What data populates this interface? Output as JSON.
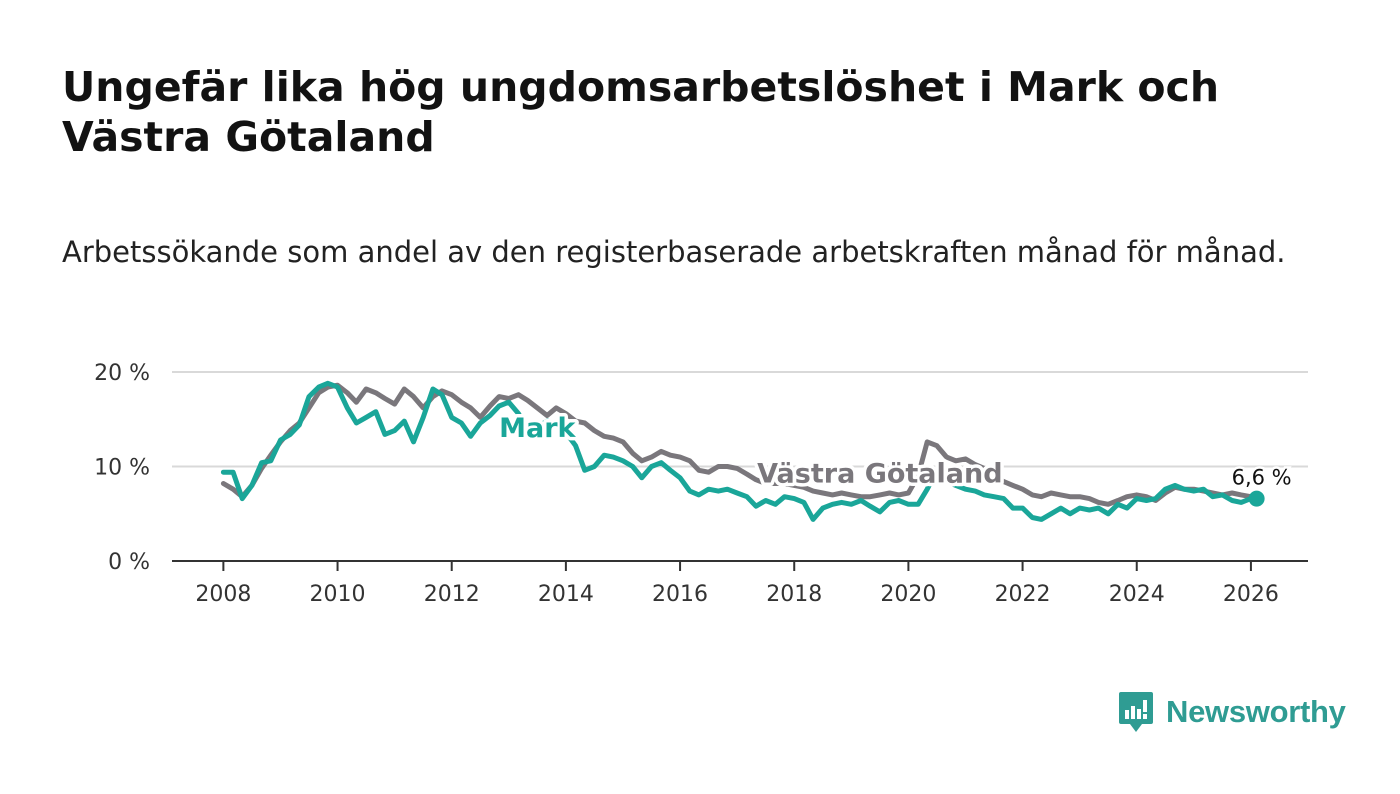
{
  "title": "Ungefär lika hög ungdomsarbetslöshet i Mark och Västra Götaland",
  "subtitle": "Arbetssökande som andel av den registerbaserade arbetskraften månad för månad.",
  "brand": {
    "name": "Newsworthy",
    "color": "#2f9c93"
  },
  "chart_data": {
    "type": "line",
    "title": "Ungefär lika hög ungdomsarbetslöshet i Mark och Västra Götaland",
    "xlabel": "",
    "ylabel": "",
    "xlim": [
      2007.1,
      2027.0
    ],
    "ylim": [
      0,
      20
    ],
    "yticks": [
      0,
      10,
      20
    ],
    "ytick_labels": [
      "0 %",
      "10 %",
      "20 %"
    ],
    "xticks": [
      2008,
      2010,
      2012,
      2014,
      2016,
      2018,
      2020,
      2022,
      2024,
      2026
    ],
    "xtick_labels": [
      "2008",
      "2010",
      "2012",
      "2014",
      "2016",
      "2018",
      "2020",
      "2022",
      "2024",
      "2026"
    ],
    "grid": true,
    "end_label": "6,6 %",
    "series": [
      {
        "name": "Västra Götaland",
        "color": "#7a777c",
        "x": [
          2008.0,
          2008.17,
          2008.33,
          2008.5,
          2008.67,
          2008.83,
          2009.0,
          2009.17,
          2009.33,
          2009.5,
          2009.67,
          2009.83,
          2010.0,
          2010.17,
          2010.33,
          2010.5,
          2010.67,
          2010.83,
          2011.0,
          2011.17,
          2011.33,
          2011.5,
          2011.67,
          2011.83,
          2012.0,
          2012.17,
          2012.33,
          2012.5,
          2012.67,
          2012.83,
          2013.0,
          2013.17,
          2013.33,
          2013.5,
          2013.67,
          2013.83,
          2014.0,
          2014.17,
          2014.33,
          2014.5,
          2014.67,
          2014.83,
          2015.0,
          2015.17,
          2015.33,
          2015.5,
          2015.67,
          2015.83,
          2016.0,
          2016.17,
          2016.33,
          2016.5,
          2016.67,
          2016.83,
          2017.0,
          2017.17,
          2017.33,
          2017.5,
          2017.67,
          2017.83,
          2018.0,
          2018.17,
          2018.33,
          2018.5,
          2018.67,
          2018.83,
          2019.0,
          2019.17,
          2019.33,
          2019.5,
          2019.67,
          2019.83,
          2020.0,
          2020.17,
          2020.33,
          2020.5,
          2020.67,
          2020.83,
          2021.0,
          2021.17,
          2021.33,
          2021.5,
          2021.67,
          2021.83,
          2022.0,
          2022.17,
          2022.33,
          2022.5,
          2022.67,
          2022.83,
          2023.0,
          2023.17,
          2023.33,
          2023.5,
          2023.67,
          2023.83,
          2024.0,
          2024.17,
          2024.33,
          2024.5,
          2024.67,
          2024.83,
          2025.0,
          2025.17,
          2025.33,
          2025.5,
          2025.67,
          2025.83,
          2026.0,
          2026.1
        ],
        "values": [
          8.2,
          7.6,
          6.8,
          8.0,
          9.8,
          11.2,
          12.6,
          13.8,
          14.6,
          16.2,
          17.8,
          18.4,
          18.6,
          17.8,
          16.8,
          18.2,
          17.8,
          17.2,
          16.6,
          18.2,
          17.4,
          16.2,
          17.4,
          18.0,
          17.6,
          16.8,
          16.2,
          15.2,
          16.4,
          17.4,
          17.2,
          17.6,
          17.0,
          16.2,
          15.4,
          16.2,
          15.6,
          14.8,
          14.6,
          13.8,
          13.2,
          13.0,
          12.6,
          11.4,
          10.6,
          11.0,
          11.6,
          11.2,
          11.0,
          10.6,
          9.6,
          9.4,
          10.0,
          10.0,
          9.8,
          9.2,
          8.6,
          8.2,
          8.2,
          8.2,
          8.0,
          7.8,
          7.4,
          7.2,
          7.0,
          7.2,
          7.0,
          6.8,
          6.8,
          7.0,
          7.2,
          7.0,
          7.2,
          9.0,
          12.6,
          12.2,
          11.0,
          10.6,
          10.8,
          10.2,
          9.8,
          9.0,
          8.4,
          8.0,
          7.6,
          7.0,
          6.8,
          7.2,
          7.0,
          6.8,
          6.8,
          6.6,
          6.2,
          6.0,
          6.4,
          6.8,
          7.0,
          6.8,
          6.4,
          7.2,
          7.8,
          7.6,
          7.6,
          7.4,
          7.2,
          7.0,
          7.2,
          7.0,
          6.8,
          6.6
        ]
      },
      {
        "name": "Mark",
        "color": "#1aa699",
        "x": [
          2008.0,
          2008.17,
          2008.33,
          2008.5,
          2008.67,
          2008.83,
          2009.0,
          2009.17,
          2009.33,
          2009.5,
          2009.67,
          2009.83,
          2010.0,
          2010.17,
          2010.33,
          2010.5,
          2010.67,
          2010.83,
          2011.0,
          2011.17,
          2011.33,
          2011.5,
          2011.67,
          2011.83,
          2012.0,
          2012.17,
          2012.33,
          2012.5,
          2012.67,
          2012.83,
          2013.0,
          2013.17,
          2013.33,
          2013.5,
          2013.67,
          2013.83,
          2014.0,
          2014.17,
          2014.33,
          2014.5,
          2014.67,
          2014.83,
          2015.0,
          2015.17,
          2015.33,
          2015.5,
          2015.67,
          2015.83,
          2016.0,
          2016.17,
          2016.33,
          2016.5,
          2016.67,
          2016.83,
          2017.0,
          2017.17,
          2017.33,
          2017.5,
          2017.67,
          2017.83,
          2018.0,
          2018.17,
          2018.33,
          2018.5,
          2018.67,
          2018.83,
          2019.0,
          2019.17,
          2019.33,
          2019.5,
          2019.67,
          2019.83,
          2020.0,
          2020.17,
          2020.33,
          2020.5,
          2020.67,
          2020.83,
          2021.0,
          2021.17,
          2021.33,
          2021.5,
          2021.67,
          2021.83,
          2022.0,
          2022.17,
          2022.33,
          2022.5,
          2022.67,
          2022.83,
          2023.0,
          2023.17,
          2023.33,
          2023.5,
          2023.67,
          2023.83,
          2024.0,
          2024.17,
          2024.33,
          2024.5,
          2024.67,
          2024.83,
          2025.0,
          2025.17,
          2025.33,
          2025.5,
          2025.67,
          2025.83,
          2026.0,
          2026.1
        ],
        "values": [
          9.4,
          9.4,
          6.6,
          8.0,
          10.4,
          10.6,
          12.8,
          13.4,
          14.4,
          17.4,
          18.4,
          18.8,
          18.4,
          16.2,
          14.6,
          15.2,
          15.8,
          13.4,
          13.8,
          14.8,
          12.6,
          15.2,
          18.2,
          17.6,
          15.2,
          14.6,
          13.2,
          14.6,
          15.4,
          16.4,
          16.8,
          15.6,
          13.8,
          14.2,
          14.8,
          14.6,
          13.6,
          12.2,
          9.6,
          10.0,
          11.2,
          11.0,
          10.6,
          10.0,
          8.8,
          10.0,
          10.4,
          9.6,
          8.8,
          7.4,
          7.0,
          7.6,
          7.4,
          7.6,
          7.2,
          6.8,
          5.8,
          6.4,
          6.0,
          6.8,
          6.6,
          6.2,
          4.4,
          5.6,
          6.0,
          6.2,
          6.0,
          6.4,
          5.8,
          5.2,
          6.2,
          6.4,
          6.0,
          6.0,
          7.6,
          9.6,
          8.4,
          8.0,
          7.6,
          7.4,
          7.0,
          6.8,
          6.6,
          5.6,
          5.6,
          4.6,
          4.4,
          5.0,
          5.6,
          5.0,
          5.6,
          5.4,
          5.6,
          5.0,
          6.0,
          5.6,
          6.6,
          6.4,
          6.6,
          7.6,
          8.0,
          7.6,
          7.4,
          7.6,
          6.8,
          7.0,
          6.4,
          6.2,
          6.6,
          6.6
        ]
      }
    ],
    "annotations": [
      {
        "label": "Mark",
        "series": "Mark",
        "x": 2013.5,
        "y": 13.1
      },
      {
        "label": "Västra Götaland",
        "series": "Västra Götaland",
        "x": 2019.5,
        "y": 8.3
      }
    ]
  }
}
